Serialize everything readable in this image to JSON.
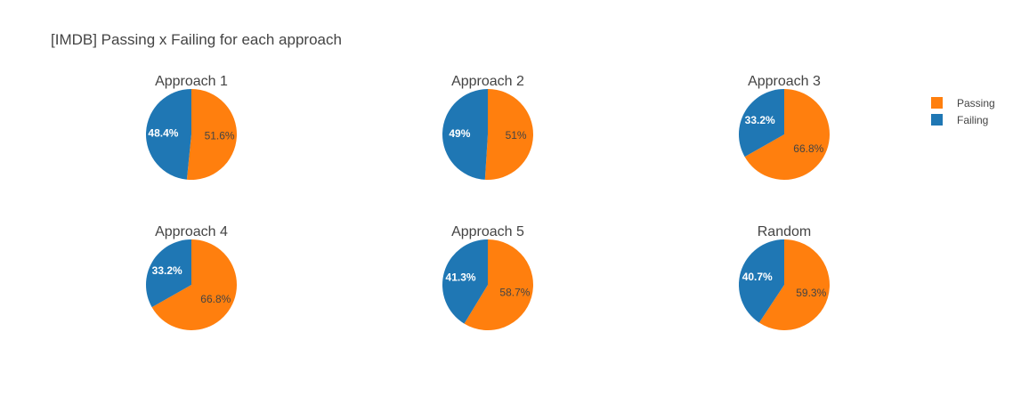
{
  "colors": {
    "passing": "#ff7f0e",
    "failing": "#1f77b4"
  },
  "chart_data": {
    "type": "pie",
    "title": "[IMDB] Passing x Failing for each approach",
    "legend": [
      {
        "name": "Passing",
        "color": "#ff7f0e"
      },
      {
        "name": "Failing",
        "color": "#1f77b4"
      }
    ],
    "legend_position": "top-right",
    "pies": [
      {
        "title": "Approach 1",
        "slices": [
          {
            "name": "Passing",
            "value": 51.6,
            "label": "51.6%"
          },
          {
            "name": "Failing",
            "value": 48.4,
            "label": "48.4%"
          }
        ]
      },
      {
        "title": "Approach 2",
        "slices": [
          {
            "name": "Passing",
            "value": 51.0,
            "label": "51%"
          },
          {
            "name": "Failing",
            "value": 49.0,
            "label": "49%"
          }
        ]
      },
      {
        "title": "Approach 3",
        "slices": [
          {
            "name": "Passing",
            "value": 66.8,
            "label": "66.8%"
          },
          {
            "name": "Failing",
            "value": 33.2,
            "label": "33.2%"
          }
        ]
      },
      {
        "title": "Approach 4",
        "slices": [
          {
            "name": "Passing",
            "value": 66.8,
            "label": "66.8%"
          },
          {
            "name": "Failing",
            "value": 33.2,
            "label": "33.2%"
          }
        ]
      },
      {
        "title": "Approach 5",
        "slices": [
          {
            "name": "Passing",
            "value": 58.7,
            "label": "58.7%"
          },
          {
            "name": "Failing",
            "value": 41.3,
            "label": "41.3%"
          }
        ]
      },
      {
        "title": "Random",
        "slices": [
          {
            "name": "Passing",
            "value": 59.3,
            "label": "59.3%"
          },
          {
            "name": "Failing",
            "value": 40.7,
            "label": "40.7%"
          }
        ]
      }
    ]
  }
}
